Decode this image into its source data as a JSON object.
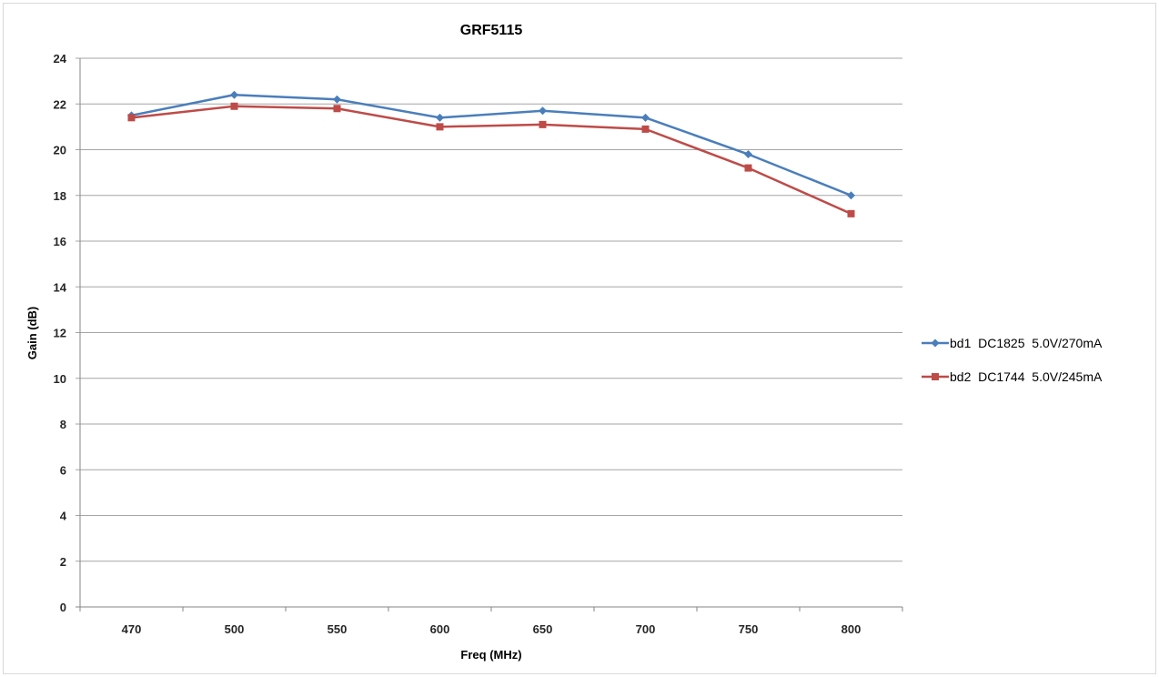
{
  "chart_data": {
    "type": "line",
    "title": "GRF5115",
    "xlabel": "Freq (MHz)",
    "ylabel": "Gain (dB)",
    "categories": [
      "470",
      "500",
      "550",
      "600",
      "650",
      "700",
      "750",
      "800"
    ],
    "yticks": [
      "0",
      "2",
      "4",
      "6",
      "8",
      "10",
      "12",
      "14",
      "16",
      "18",
      "20",
      "22",
      "24"
    ],
    "ylim": [
      0,
      24
    ],
    "grid": true,
    "legend_position": "right",
    "series": [
      {
        "name": "bd1  DC1825  5.0V/270mA",
        "color": "#4a7ebb",
        "marker": "diamond",
        "values": [
          21.5,
          22.4,
          22.2,
          21.4,
          21.7,
          21.4,
          19.8,
          18.0
        ]
      },
      {
        "name": "bd2  DC1744  5.0V/245mA",
        "color": "#be4b48",
        "marker": "square",
        "values": [
          21.4,
          21.9,
          21.8,
          21.0,
          21.1,
          20.9,
          19.2,
          17.2
        ]
      }
    ]
  }
}
